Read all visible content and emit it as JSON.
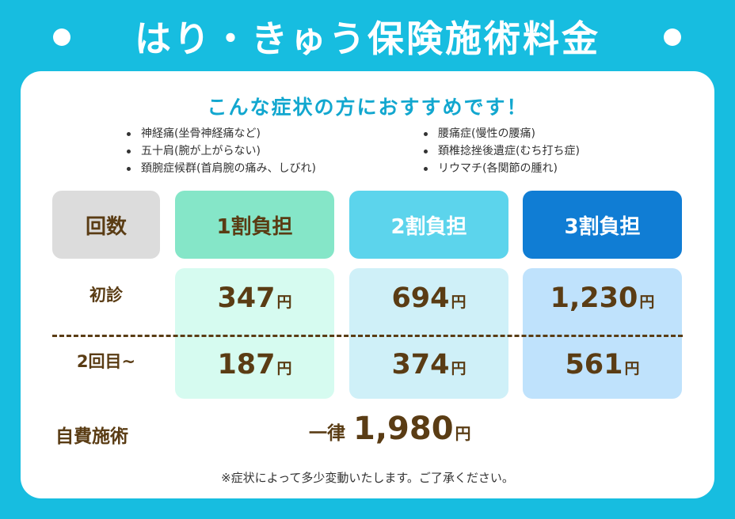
{
  "title": "はり・きゅう保険施術料金",
  "subtitle": "こんな症状の方におすすめです！",
  "symptoms_left": [
    "神経痛(坐骨神経痛など)",
    "五十肩(腕が上がらない)",
    "頚腕症候群(首肩腕の痛み、しびれ)"
  ],
  "symptoms_right": [
    "腰痛症(慢性の腰痛)",
    "頚椎捻挫後遺症(むち打ち症)",
    "リウマチ(各関節の腫れ)"
  ],
  "table": {
    "header": [
      "回数",
      "1割負担",
      "2割負担",
      "3割負担"
    ],
    "rows": [
      {
        "label": "初診",
        "prices": [
          "347",
          "694",
          "1,230"
        ]
      },
      {
        "label": "2回目~",
        "prices": [
          "187",
          "374",
          "561"
        ]
      }
    ],
    "unit": "円"
  },
  "self_pay": {
    "label": "自費施術",
    "prefix": "一律",
    "amount": "1,980",
    "unit": "円"
  },
  "note": "※症状によって多少変動いたします。ご了承ください。",
  "colors": {
    "background": "#17bde0",
    "subtitle": "#12a7cf",
    "text_brown": "#5a3c14",
    "header_count": "#dcdcdc",
    "header_10pct": "#85e6c8",
    "header_20pct": "#5cd4ec",
    "header_30pct": "#107dd4",
    "col_10pct": "#d6fbf0",
    "col_20pct": "#cff0f8",
    "col_30pct": "#bfe2fc"
  }
}
